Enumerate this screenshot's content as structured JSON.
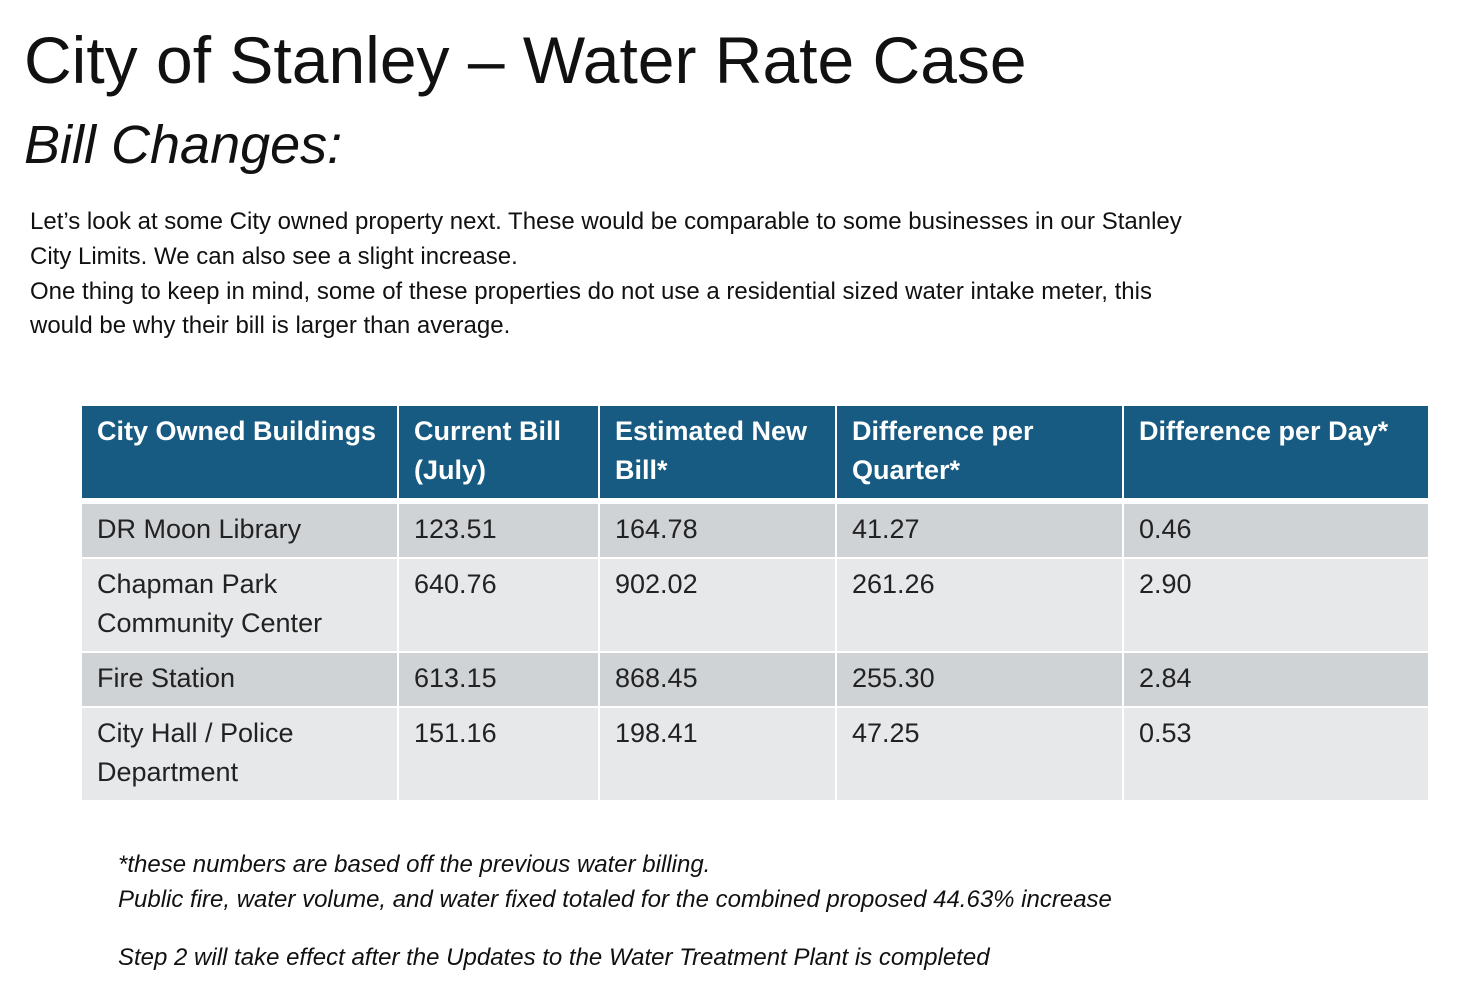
{
  "header": {
    "title": "City of Stanley – Water Rate Case",
    "subtitle": "Bill Changes:"
  },
  "intro": {
    "lines": [
      "Let’s look at some City owned property next. These would be comparable to some businesses in our Stanley",
      "City Limits. We can also see a slight increase.",
      "One thing to keep in mind, some of these properties do not use a residential sized water intake meter, this",
      "would be why their bill is larger than average."
    ]
  },
  "table": {
    "columns": [
      "City Owned Buildings",
      "Current Bill (July)",
      "Estimated New Bill*",
      "Difference per Quarter*",
      "Difference per Day*"
    ],
    "rows": [
      [
        "DR Moon Library",
        "123.51",
        "164.78",
        "41.27",
        "0.46"
      ],
      [
        "Chapman Park Community Center",
        "640.76",
        "902.02",
        "261.26",
        "2.90"
      ],
      [
        "Fire Station",
        "613.15",
        "868.45",
        "255.30",
        "2.84"
      ],
      [
        "City Hall / Police Department",
        "151.16",
        "198.41",
        "47.25",
        "0.53"
      ]
    ]
  },
  "notes": [
    "*these numbers are based off the previous water billing.",
    "Public fire, water volume, and water fixed totaled for the combined proposed 44.63% increase",
    "Step 2 will take effect after the Updates to the Water Treatment Plant is completed"
  ]
}
